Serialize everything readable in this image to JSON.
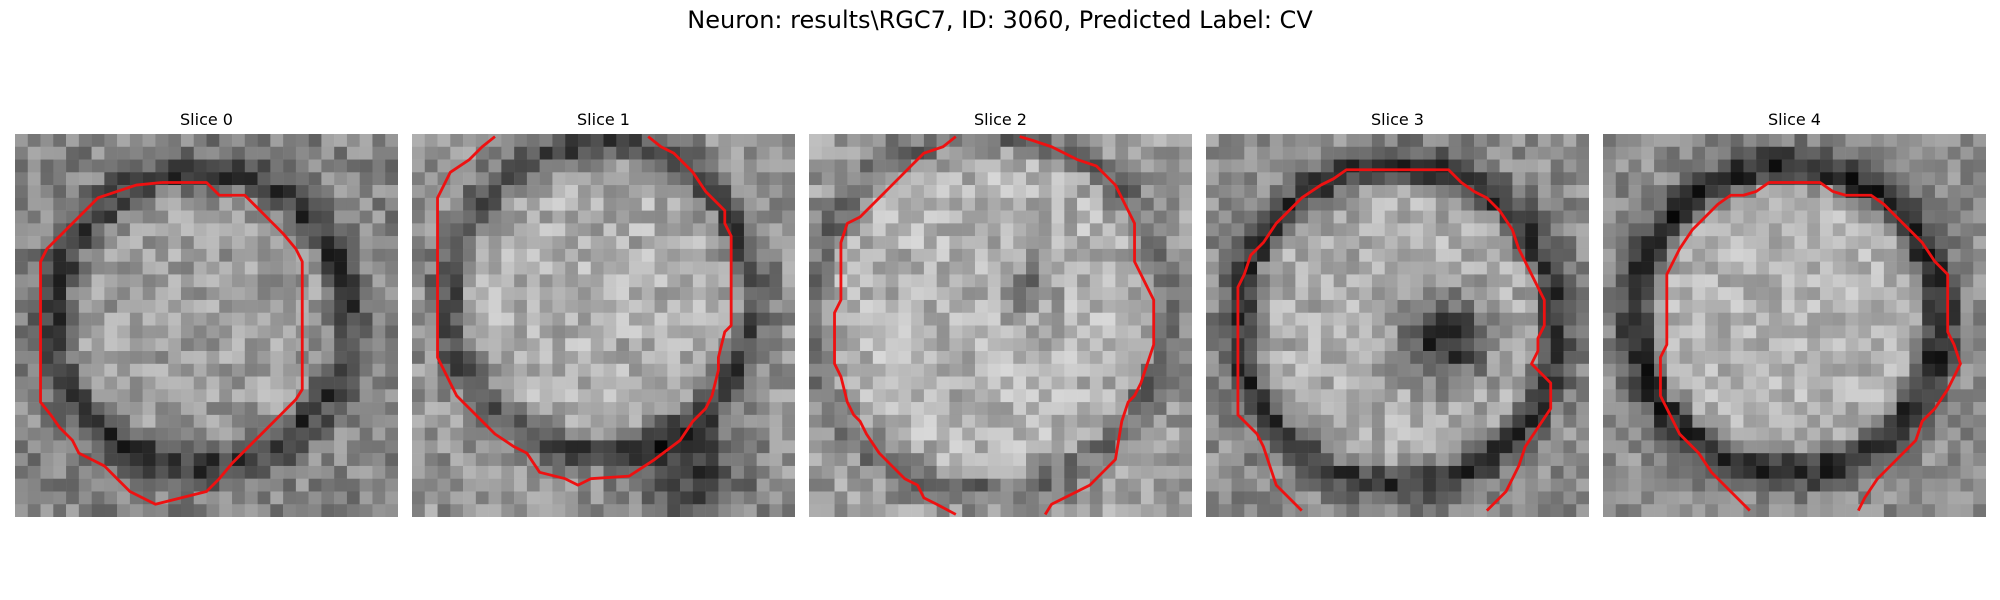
{
  "figure": {
    "title": "Neuron: results\\RGC7, ID: 3060, Predicted Label: CV"
  },
  "panels": [
    {
      "title": "Slice 0"
    },
    {
      "title": "Slice 1"
    },
    {
      "title": "Slice 2"
    },
    {
      "title": "Slice 3"
    },
    {
      "title": "Slice 4"
    }
  ],
  "style": {
    "contour_color": "#ee1111",
    "colormap": "gray"
  }
}
